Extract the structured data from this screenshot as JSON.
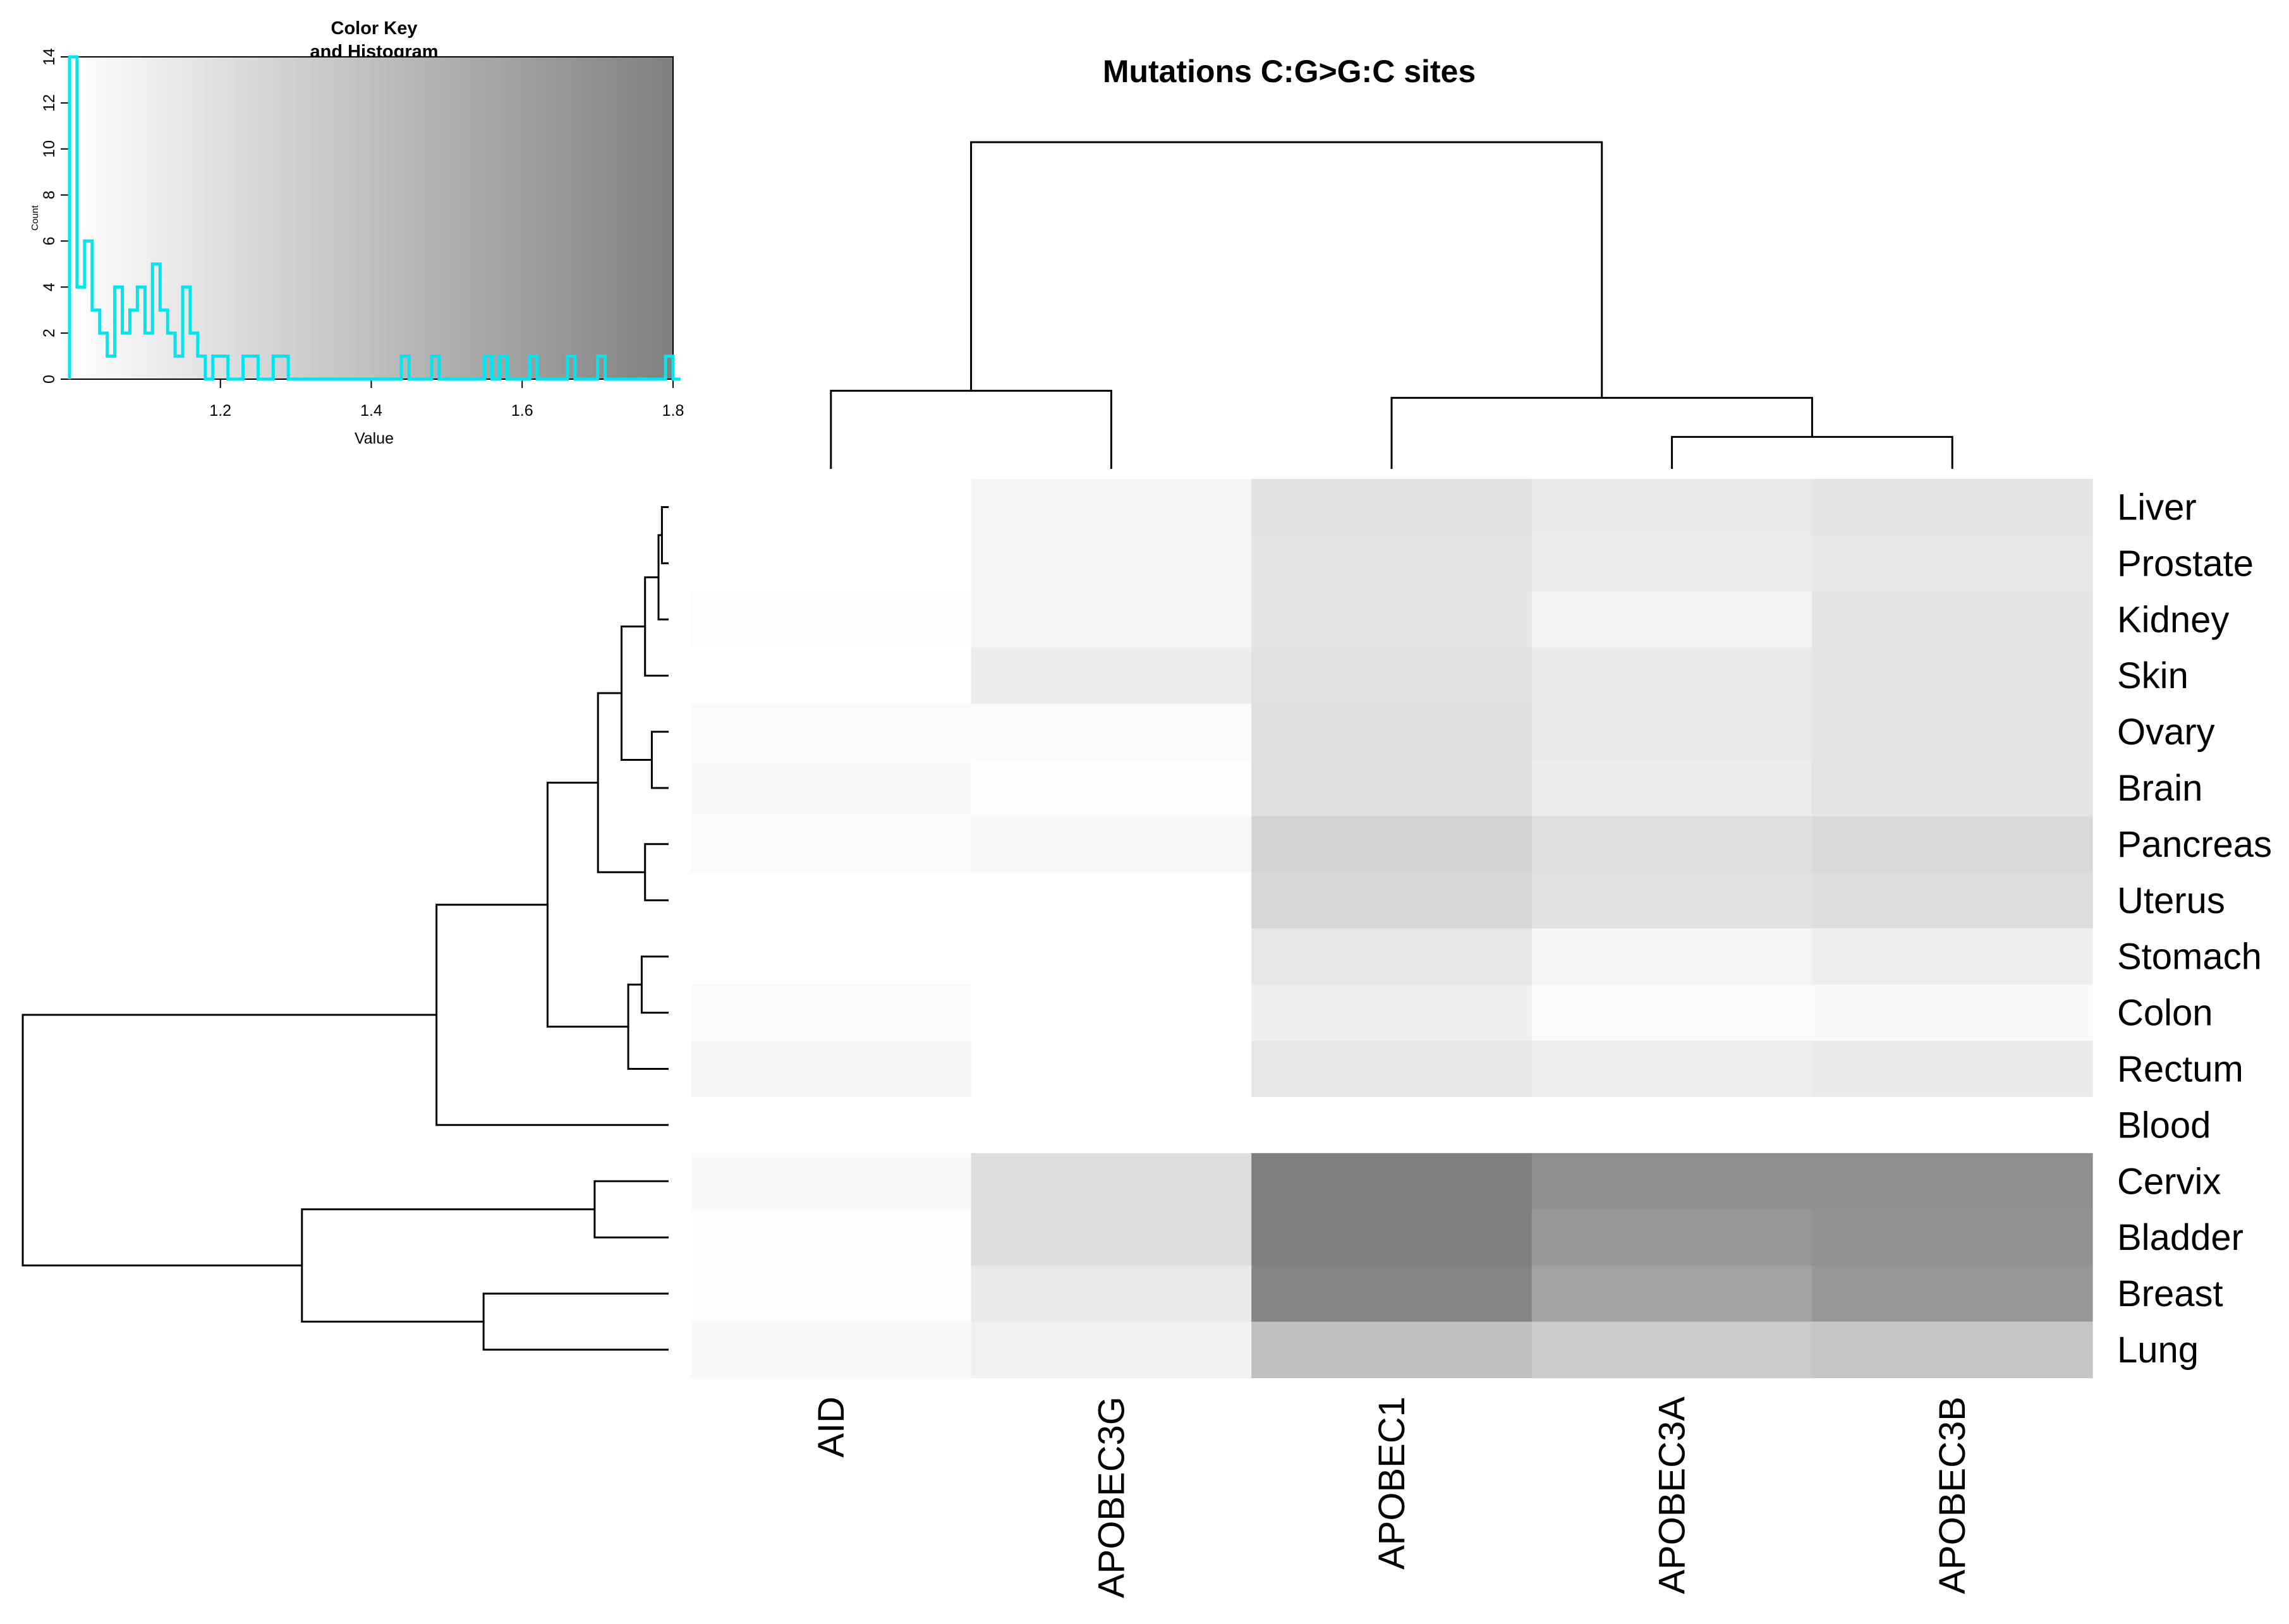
{
  "chart_data": {
    "type": "heatmap",
    "title": "Mutations C:G>G:C sites",
    "columns": [
      "AID",
      "APOBEC3G",
      "APOBEC1",
      "APOBEC3A",
      "APOBEC3B"
    ],
    "rows": [
      "Liver",
      "Prostate",
      "Kidney",
      "Skin",
      "Ovary",
      "Brain",
      "Pancreas",
      "Uterus",
      "Stomach",
      "Colon",
      "Rectum",
      "Blood",
      "Cervix",
      "Bladder",
      "Breast",
      "Lung"
    ],
    "values": [
      [
        1.0,
        1.06,
        1.19,
        1.13,
        1.17
      ],
      [
        1.0,
        1.06,
        1.16,
        1.12,
        1.15
      ],
      [
        1.02,
        1.06,
        1.16,
        1.08,
        1.17
      ],
      [
        1.0,
        1.12,
        1.18,
        1.13,
        1.17
      ],
      [
        1.03,
        1.03,
        1.2,
        1.14,
        1.17
      ],
      [
        1.04,
        1.01,
        1.2,
        1.12,
        1.17
      ],
      [
        1.03,
        1.05,
        1.28,
        1.2,
        1.24
      ],
      [
        1.0,
        1.0,
        1.25,
        1.19,
        1.21
      ],
      [
        1.0,
        1.0,
        1.15,
        1.06,
        1.1
      ],
      [
        1.03,
        1.0,
        1.1,
        1.03,
        1.04
      ],
      [
        1.06,
        1.0,
        1.15,
        1.11,
        1.13
      ],
      [
        1.0,
        1.0,
        1.0,
        1.0,
        1.0
      ],
      [
        1.04,
        1.21,
        1.81,
        1.7,
        1.7
      ],
      [
        1.01,
        1.21,
        1.81,
        1.65,
        1.69
      ],
      [
        1.01,
        1.14,
        1.77,
        1.58,
        1.65
      ],
      [
        1.04,
        1.09,
        1.4,
        1.33,
        1.36
      ]
    ],
    "color_scale": {
      "low": "#ffffff",
      "high": "#7f7f7f"
    },
    "color_key": {
      "title": "Color Key",
      "subtitle": "and Histogram",
      "xlabel": "Value",
      "ylabel": "Count",
      "xlim": [
        1.0,
        1.8
      ],
      "ylim": [
        0,
        14
      ],
      "xticks": [
        1.2,
        1.4,
        1.6,
        1.8
      ],
      "yticks": [
        0,
        2,
        4,
        6,
        8,
        10,
        12,
        14
      ],
      "histogram_color": "#00e5ee",
      "histogram_x": [
        1.0,
        1.01,
        1.02,
        1.03,
        1.04,
        1.05,
        1.06,
        1.07,
        1.08,
        1.09,
        1.1,
        1.11,
        1.12,
        1.13,
        1.14,
        1.15,
        1.16,
        1.17,
        1.18,
        1.19,
        1.2,
        1.21,
        1.22,
        1.23,
        1.24,
        1.25,
        1.26,
        1.27,
        1.28,
        1.29,
        1.3,
        1.44,
        1.45,
        1.48,
        1.49,
        1.55,
        1.56,
        1.57,
        1.58,
        1.61,
        1.62,
        1.66,
        1.67,
        1.7,
        1.71,
        1.79,
        1.8
      ],
      "histogram_counts": [
        14,
        4,
        6,
        3,
        2,
        1,
        4,
        2,
        3,
        4,
        2,
        5,
        3,
        2,
        1,
        4,
        2,
        1,
        0,
        1,
        1,
        0,
        0,
        1,
        1,
        0,
        0,
        1,
        1,
        0,
        0,
        1,
        0,
        1,
        0,
        1,
        0,
        1,
        0,
        1,
        0,
        1,
        0,
        1,
        0,
        1,
        0
      ]
    },
    "column_dendrogram": {
      "order": [
        "AID",
        "APOBEC3G",
        "APOBEC1",
        "APOBEC3A",
        "APOBEC3B"
      ],
      "merges": [
        {
          "left": "APOBEC3A",
          "right": "APOBEC3B",
          "height": 0.09
        },
        {
          "left": "AID",
          "right": "APOBEC3G",
          "height": 0.22
        },
        {
          "left": "APOBEC1",
          "right": "APOBEC3A+APOBEC3B",
          "height": 0.2
        },
        {
          "left": "AID+APOBEC3G",
          "right": "APOBEC1+APOBEC3A+APOBEC3B",
          "height": 0.92
        }
      ]
    },
    "row_dendrogram": {
      "order": [
        "Liver",
        "Prostate",
        "Kidney",
        "Skin",
        "Ovary",
        "Brain",
        "Pancreas",
        "Uterus",
        "Stomach",
        "Colon",
        "Rectum",
        "Blood",
        "Cervix",
        "Bladder",
        "Breast",
        "Lung"
      ],
      "merges": [
        {
          "left": "Liver",
          "right": "Prostate",
          "height": 0.02
        },
        {
          "left": "Liver+Prostate",
          "right": "Kidney",
          "height": 0.03
        },
        {
          "left": "Ovary",
          "right": "Brain",
          "height": 0.05
        },
        {
          "left": "Liver+Prostate+Kidney",
          "right": "Skin",
          "height": 0.07
        },
        {
          "left": "Pancreas",
          "right": "Uterus",
          "height": 0.07
        },
        {
          "left": "Stomach",
          "right": "Colon",
          "height": 0.08
        },
        {
          "left": "Stomach+Colon",
          "right": "Rectum",
          "height": 0.12
        },
        {
          "left": "Liver+Prostate+Kidney+Skin",
          "right": "Ovary+Brain",
          "height": 0.14
        },
        {
          "left": "Liver+Prostate+Kidney+Skin+Ovary+Brain",
          "right": "Pancreas+Uterus",
          "height": 0.21
        },
        {
          "left": "Cervix",
          "right": "Bladder",
          "height": 0.22
        },
        {
          "left": "Liver+Prostate+Kidney+Skin+Ovary+Brain+Pancreas+Uterus",
          "right": "Stomach+Colon+Rectum",
          "height": 0.36
        },
        {
          "left": "Breast",
          "right": "Lung",
          "height": 0.55
        },
        {
          "left": "Liver+Prostate+Kidney+Skin+Ovary+Brain+Pancreas+Uterus+Stomach+Colon+Rectum",
          "right": "Blood",
          "height": 0.69
        },
        {
          "left": "Cervix+Bladder",
          "right": "Breast+Lung",
          "height": 1.09
        },
        {
          "left": "Liver+Prostate+Kidney+Skin+Ovary+Brain+Pancreas+Uterus+Stomach+Colon+Rectum+Blood",
          "right": "Cervix+Bladder+Breast+Lung",
          "height": 1.92
        }
      ]
    }
  }
}
